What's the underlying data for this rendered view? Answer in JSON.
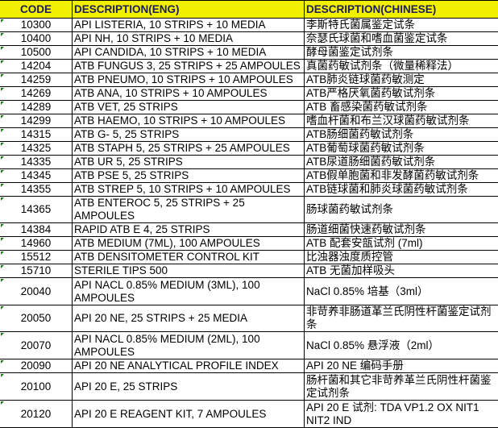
{
  "header": {
    "code": "CODE",
    "eng": "DESCRIPTION(ENG)",
    "chinese": "DESCRIPTION(CHINESE)"
  },
  "header_color": "#f2f000",
  "rows": [
    {
      "code": "10300",
      "eng": "API LISTERIA, 10 STRIPS + 10 MEDIA",
      "chinese": "李斯特氏菌属鉴定试条"
    },
    {
      "code": "10400",
      "eng": "API NH, 10 STRIPS + 10 MEDIA",
      "chinese": "奈瑟氏球菌和嗜血菌鉴定试条"
    },
    {
      "code": "10500",
      "eng": "API CANDIDA, 10 STRIPS + 10 MEDIA",
      "chinese": "酵母菌鉴定试剂条"
    },
    {
      "code": "14204",
      "eng": "ATB FUNGUS 3, 25 STRIPS + 25 AMPOULES",
      "chinese": "真菌药敏试剂条（微量稀释法）"
    },
    {
      "code": "14259",
      "eng": "ATB PNEUMO, 10 STRIPS + 10 AMPOULES",
      "chinese": "ATB肺炎链球菌药敏测定"
    },
    {
      "code": "14269",
      "eng": "ATB ANA, 10 STRIPS + 10 AMPOULES",
      "chinese": "ATB严格厌氧菌药敏试剂条"
    },
    {
      "code": "14289",
      "eng": "ATB VET, 25 STRIPS",
      "chinese": "ATB 畜感染菌药敏试剂条"
    },
    {
      "code": "14299",
      "eng": "ATB HAEMO, 10 STRIPS + 10 AMPOULES",
      "chinese": "嗜血杆菌和布兰汉球菌药敏试剂条"
    },
    {
      "code": "14315",
      "eng": "ATB G- 5, 25 STRIPS",
      "chinese": "ATB肠细菌药敏试剂条"
    },
    {
      "code": "14325",
      "eng": "ATB STAPH 5, 25 STRIPS + 25 AMPOULES",
      "chinese": "ATB葡萄球菌药敏试剂条"
    },
    {
      "code": "14335",
      "eng": "ATB UR 5, 25 STRIPS",
      "chinese": "ATB尿道肠细菌药敏试剂条"
    },
    {
      "code": "14345",
      "eng": "ATB PSE 5, 25 STRIPS",
      "chinese": "ATB假单胞菌和非发酵菌药敏试剂条"
    },
    {
      "code": "14355",
      "eng": "ATB STREP 5, 10 STRIPS + 10 AMPOULES",
      "chinese": "ATB链球菌和肺炎球菌药敏试剂条"
    },
    {
      "code": "14365",
      "eng": "ATB ENTEROC 5, 25 STRIPS + 25 AMPOULES",
      "chinese": "肠球菌药敏试剂条"
    },
    {
      "code": "14384",
      "eng": "RAPID ATB E 4, 25 STRIPS",
      "chinese": "肠道细菌快速药敏试剂条"
    },
    {
      "code": "14960",
      "eng": "ATB MEDIUM (7ML), 100 AMPOULES",
      "chinese": "ATB 配套安瓿试剂 (7ml)"
    },
    {
      "code": "15512",
      "eng": "ATB DENSITOMETER CONTROL KIT",
      "chinese": "比浊器浊度质控管"
    },
    {
      "code": "15710",
      "eng": "STERILE TIPS 500",
      "chinese": "ATB 无菌加样吸头"
    },
    {
      "code": "20040",
      "eng": "API NACL 0.85% MEDIUM (3ML), 100 AMPOULES",
      "chinese": "NaCl 0.85% 培基（3ml）"
    },
    {
      "code": "20050",
      "eng": "API 20 NE, 25 STRIPS + 25 MEDIA",
      "chinese": "非苛养非肠道革兰氏阴性杆菌鉴定试剂条"
    },
    {
      "code": "20070",
      "eng": "API NACL 0.85% MEDIUM (2ML), 100 AMPOULES",
      "chinese": "NaCl 0.85% 悬浮液（2ml）"
    },
    {
      "code": "20090",
      "eng": "API 20 NE ANALYTICAL PROFILE INDEX",
      "chinese": "API 20 NE 编码手册"
    },
    {
      "code": "20100",
      "eng": "API 20 E, 25 STRIPS",
      "chinese": "肠杆菌和其它非苛养革兰氏阴性杆菌鉴定试剂条"
    },
    {
      "code": "20120",
      "eng": "API 20 E REAGENT KIT, 7 AMPOULES",
      "chinese": "API 20 E 试剂: TDA VP1.2 OX NIT1 NIT2 IND"
    }
  ]
}
